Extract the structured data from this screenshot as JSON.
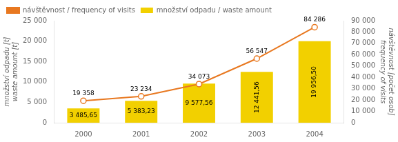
{
  "chart_data": {
    "type": "bar",
    "categories": [
      "2000",
      "2001",
      "2002",
      "2003",
      "2004"
    ],
    "series": [
      {
        "name": "návštěvnost / frequency of visits",
        "type": "line",
        "axis": "y2",
        "color": "#E87820",
        "marker": "circle",
        "values": [
          19358,
          23234,
          34073,
          56547,
          84286
        ],
        "value_labels": [
          "19 358",
          "23 234",
          "34 073",
          "56 547",
          "84 286"
        ]
      },
      {
        "name": "množství odpadu / waste amount",
        "type": "bar",
        "color": "#F2D000",
        "values": [
          3485.65,
          5383.23,
          9577.56,
          12441.56,
          19956.5
        ],
        "value_labels": [
          "3 485,65",
          "5 383,23",
          "9 577,56",
          "12 441,56",
          "19 956,50"
        ]
      }
    ],
    "ylabel": "množství odpadu [t]\nwaste amount [t]",
    "y2label": "návštěvnost [počet osob]\nfrequency of visits",
    "ylim": [
      0,
      25000
    ],
    "yticks": [
      0,
      {
        "value": 5000,
        "label": "5 000"
      },
      {
        "value": 10000,
        "label": "10 000"
      },
      {
        "value": 15000,
        "label": "15 000"
      },
      {
        "value": 20000,
        "label": "20 000"
      },
      {
        "value": 25000,
        "label": "25 000"
      }
    ],
    "y2lim": [
      0,
      90000
    ],
    "y2ticks": [
      0,
      {
        "value": 10000,
        "label": "10 000"
      },
      {
        "value": 20000,
        "label": "20 000"
      },
      {
        "value": 30000,
        "label": "30 000"
      },
      {
        "value": 40000,
        "label": "40 000"
      },
      {
        "value": 50000,
        "label": "50 000"
      },
      {
        "value": 60000,
        "label": "60 000"
      },
      {
        "value": 70000,
        "label": "70 000"
      },
      {
        "value": 80000,
        "label": "80 000"
      },
      {
        "value": 90000,
        "label": "90 000"
      }
    ],
    "grid": false,
    "legend": "upper left",
    "data_labels": true
  }
}
